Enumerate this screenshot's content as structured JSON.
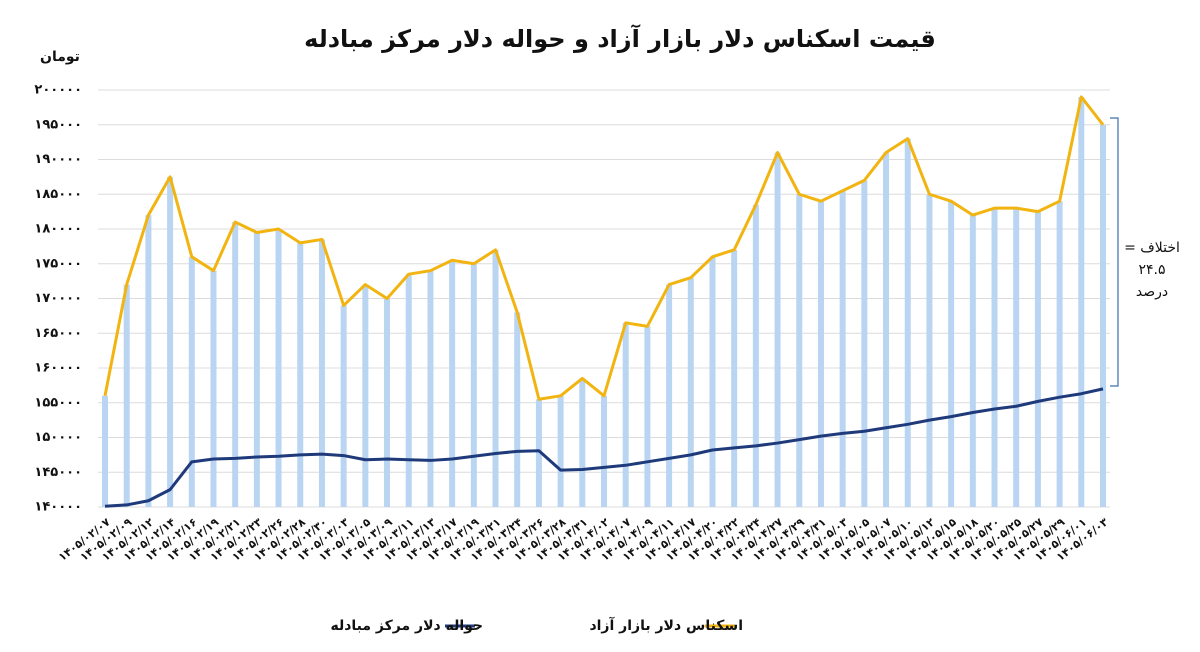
{
  "chart_data": {
    "type": "line",
    "title": "قیمت اسکناس دلار بازار آزاد و حواله دلار مرکز مبادله",
    "y_label": "تومان",
    "annotation": [
      "اختلاف =",
      "۲۴.۵",
      "درصد"
    ],
    "categories": [
      "۱۴۰۵/۰۲/۰۷",
      "۱۴۰۵/۰۲/۰۹",
      "۱۴۰۵/۰۲/۱۲",
      "۱۴۰۵/۰۲/۱۴",
      "۱۴۰۵/۰۲/۱۶",
      "۱۴۰۵/۰۲/۱۹",
      "۱۴۰۵/۰۲/۲۱",
      "۱۴۰۵/۰۲/۲۳",
      "۱۴۰۵/۰۲/۲۶",
      "۱۴۰۵/۰۲/۲۸",
      "۱۴۰۵/۰۲/۳۰",
      "۱۴۰۵/۰۳/۰۳",
      "۱۴۰۵/۰۳/۰۵",
      "۱۴۰۵/۰۳/۰۹",
      "۱۴۰۵/۰۳/۱۱",
      "۱۴۰۵/۰۳/۱۳",
      "۱۴۰۵/۰۳/۱۷",
      "۱۴۰۵/۰۳/۱۹",
      "۱۴۰۵/۰۳/۲۱",
      "۱۴۰۵/۰۳/۲۴",
      "۱۴۰۵/۰۳/۲۶",
      "۱۴۰۵/۰۳/۲۸",
      "۱۴۰۵/۰۳/۳۱",
      "۱۴۰۵/۰۴/۰۲",
      "۱۴۰۵/۰۴/۰۷",
      "۱۴۰۵/۰۴/۰۹",
      "۱۴۰۵/۰۴/۱۱",
      "۱۴۰۵/۰۴/۱۷",
      "۱۴۰۵/۰۴/۲۰",
      "۱۴۰۵/۰۴/۲۲",
      "۱۴۰۵/۰۴/۲۴",
      "۱۴۰۵/۰۴/۲۷",
      "۱۴۰۵/۰۴/۲۹",
      "۱۴۰۵/۰۴/۳۱",
      "۱۴۰۵/۰۵/۰۳",
      "۱۴۰۵/۰۵/۰۵",
      "۱۴۰۵/۰۵/۰۷",
      "۱۴۰۵/۰۵/۱۰",
      "۱۴۰۵/۰۵/۱۲",
      "۱۴۰۵/۰۵/۱۵",
      "۱۴۰۵/۰۵/۱۸",
      "۱۴۰۵/۰۵/۲۰",
      "۱۴۰۵/۰۵/۲۵",
      "۱۴۰۵/۰۵/۲۷",
      "۱۴۰۵/۰۵/۲۹",
      "۱۴۰۵/۰۶/۰۱",
      "۱۴۰۵/۰۶/۰۳"
    ],
    "series": [
      {
        "name": "حواله دلار مرکز مبادله",
        "color": "#1f3a7a",
        "values": [
          140100,
          140300,
          140900,
          142500,
          146500,
          146900,
          147000,
          147200,
          147300,
          147500,
          147600,
          147400,
          146800,
          146900,
          146800,
          146700,
          146900,
          147300,
          147700,
          148000,
          148100,
          145300,
          145400,
          145700,
          146000,
          146500,
          147000,
          147500,
          148200,
          148500,
          148800,
          149200,
          149700,
          150200,
          150600,
          150900,
          151400,
          151900,
          152500,
          153000,
          153600,
          154100,
          154500,
          155200,
          155800,
          156300,
          157000
        ]
      },
      {
        "name": "اسکناس دلار بازار آزاد",
        "color": "#f2b410",
        "values": [
          156000,
          172000,
          182000,
          187500,
          176000,
          174000,
          181000,
          179500,
          180000,
          178000,
          178500,
          169000,
          172000,
          170000,
          173500,
          174000,
          175500,
          175000,
          177000,
          168000,
          155500,
          156000,
          158500,
          156000,
          166500,
          166000,
          172000,
          173000,
          176000,
          177000,
          183500,
          191000,
          185000,
          184000,
          185500,
          187000,
          191000,
          193000,
          185000,
          184000,
          182000,
          183000,
          183000,
          182500,
          184000,
          199000,
          195000
        ]
      }
    ],
    "bar_color": "#b9d5f2",
    "ylim": [
      140000,
      200000
    ],
    "yticks": [
      {
        "value": 140000,
        "label": "۱۴۰۰۰۰"
      },
      {
        "value": 145000,
        "label": "۱۴۵۰۰۰"
      },
      {
        "value": 150000,
        "label": "۱۵۰۰۰۰"
      },
      {
        "value": 155000,
        "label": "۱۵۵۰۰۰"
      },
      {
        "value": 160000,
        "label": "۱۶۰۰۰۰"
      },
      {
        "value": 165000,
        "label": "۱۶۵۰۰۰"
      },
      {
        "value": 170000,
        "label": "۱۷۰۰۰۰"
      },
      {
        "value": 175000,
        "label": "۱۷۵۰۰۰"
      },
      {
        "value": 180000,
        "label": "۱۸۰۰۰۰"
      },
      {
        "value": 185000,
        "label": "۱۸۵۰۰۰"
      },
      {
        "value": 190000,
        "label": "۱۹۰۰۰۰"
      },
      {
        "value": 195000,
        "label": "۱۹۵۰۰۰"
      },
      {
        "value": 200000,
        "label": "۲۰۰۰۰۰"
      }
    ],
    "grid": true
  }
}
